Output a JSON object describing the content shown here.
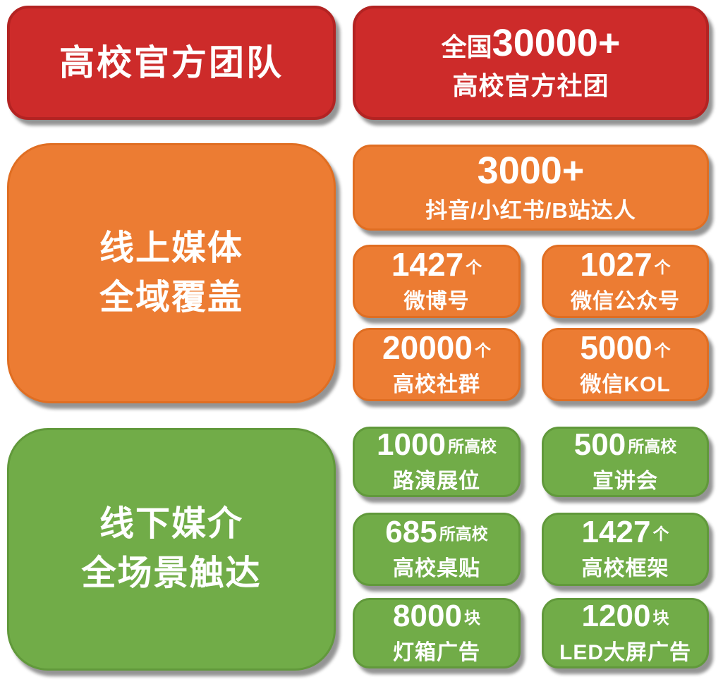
{
  "colors": {
    "red": "#cd2b2a",
    "orange": "#ec7c33",
    "green": "#71ac48",
    "text": "#ffffff",
    "background": "#ffffff"
  },
  "sections": {
    "official": {
      "header": {
        "title": "高校官方团队"
      },
      "stat": {
        "prefix": "全国",
        "number": "30000+",
        "label": "高校官方社团"
      }
    },
    "online": {
      "header": {
        "line1": "线上媒体",
        "line2": "全域覆盖"
      },
      "hero": {
        "number": "3000+",
        "label": "抖音/小红书/B站达人"
      },
      "stats": [
        {
          "number": "1427",
          "unit": "个",
          "label": "微博号"
        },
        {
          "number": "1027",
          "unit": "个",
          "label": "微信公众号"
        },
        {
          "number": "20000",
          "unit": "个",
          "label": "高校社群"
        },
        {
          "number": "5000",
          "unit": "个",
          "label": "微信KOL"
        }
      ]
    },
    "offline": {
      "header": {
        "line1": "线下媒介",
        "line2": "全场景触达"
      },
      "stats": [
        {
          "number": "1000",
          "unit": "所高校",
          "label": "路演展位"
        },
        {
          "number": "500",
          "unit": "所高校",
          "label": "宣讲会"
        },
        {
          "number": "685",
          "unit": "所高校",
          "label": "高校桌贴"
        },
        {
          "number": "1427",
          "unit": "个",
          "label": "高校框架"
        },
        {
          "number": "8000",
          "unit": "块",
          "label": "灯箱广告"
        },
        {
          "number": "1200",
          "unit": "块",
          "label": "LED大屏广告"
        }
      ]
    }
  }
}
